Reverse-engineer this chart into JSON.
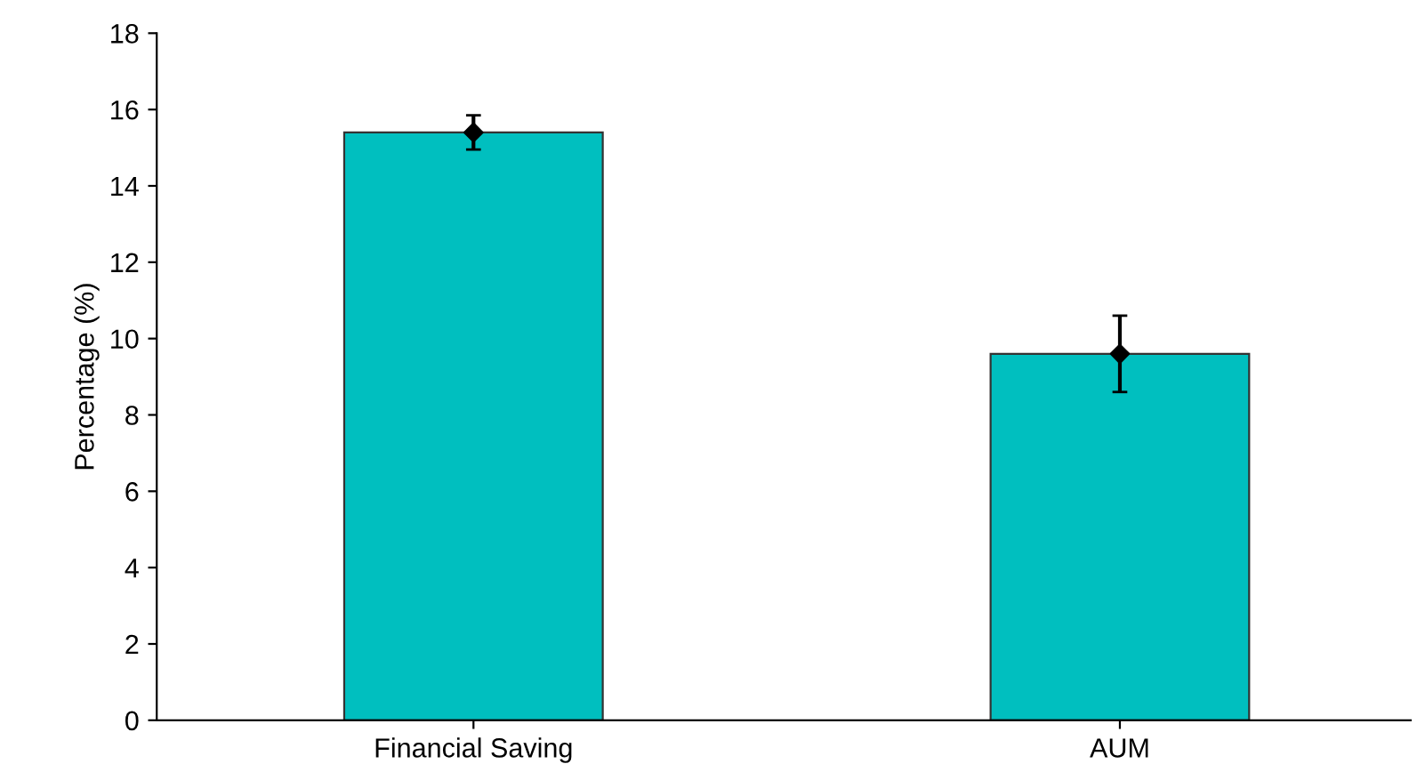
{
  "chart_data": {
    "type": "bar",
    "ylabel": "Percentage (%)",
    "categories": [
      "Financial Saving",
      "AUM"
    ],
    "series": [
      {
        "color": "#00bfbf",
        "values": [
          15.4,
          9.6
        ]
      },
      {
        "type": "scatter",
        "x": [
          "Financial Saving",
          "AUM"
        ],
        "color": "#000000",
        "values": [
          15.4,
          9.6
        ],
        "errors": [
          0.45,
          1.0
        ]
      }
    ],
    "marker": "diamond",
    "ylim": [
      0,
      18
    ],
    "yticks": [
      0,
      2,
      4,
      6,
      8,
      10,
      12,
      14,
      16,
      18
    ],
    "grid": false,
    "legend": false
  }
}
